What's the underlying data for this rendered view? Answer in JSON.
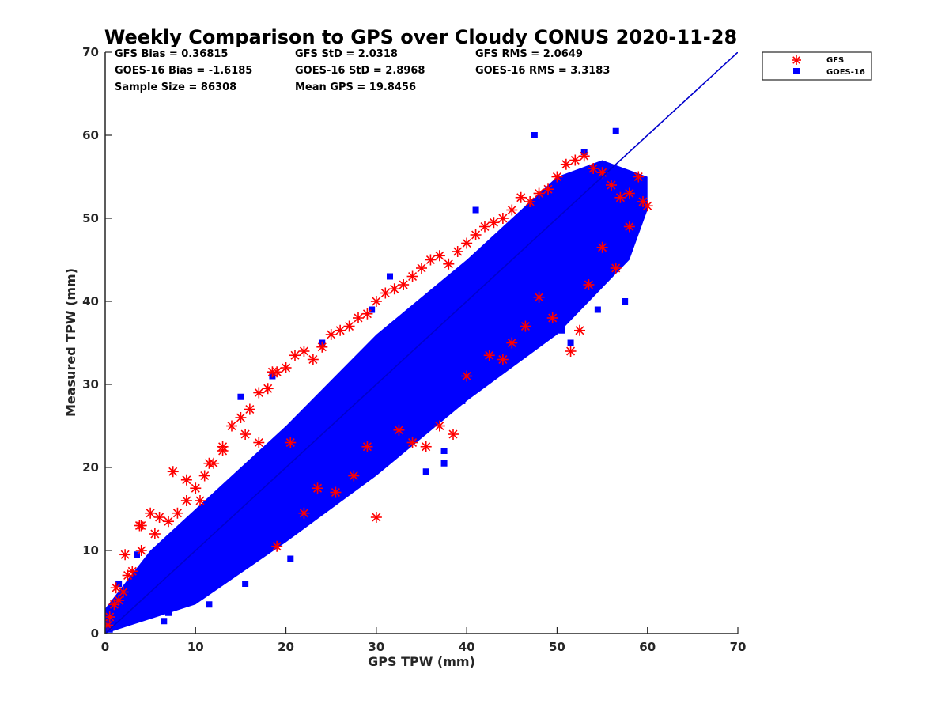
{
  "chart_data": {
    "type": "scatter",
    "title": "Weekly Comparison to GPS over Cloudy CONUS 2020-11-28",
    "xlabel": "GPS TPW (mm)",
    "ylabel": "Measured TPW (mm)",
    "xlim": [
      0,
      70
    ],
    "ylim": [
      0,
      70
    ],
    "xticks": [
      0,
      10,
      20,
      30,
      40,
      50,
      60,
      70
    ],
    "yticks": [
      0,
      10,
      20,
      30,
      40,
      50,
      60,
      70
    ],
    "grid": false,
    "legend_position": "outside top-right",
    "stats": [
      [
        "GFS Bias = 0.36815",
        "GFS StD = 2.0318",
        "GFS RMS = 2.0649"
      ],
      [
        "GOES-16 Bias = -1.6185",
        "GOES-16 StD = 2.8968",
        "GOES-16 RMS = 3.3183"
      ],
      [
        "Sample Size = 86308",
        "Mean GPS = 19.8456",
        ""
      ]
    ],
    "reference_line": {
      "x": [
        0,
        70
      ],
      "y": [
        0,
        70
      ],
      "color": "#0000cc"
    },
    "series": [
      {
        "name": "GFS",
        "marker": "asterisk",
        "color": "#ff0000",
        "x": [
          0.5,
          1.0,
          1.5,
          2.0,
          2.5,
          3.0,
          4.0,
          5.0,
          6.0,
          7.0,
          8.0,
          9.0,
          10.0,
          11.0,
          12.0,
          13.0,
          14.0,
          15.0,
          16.0,
          17.0,
          18.0,
          19.0,
          20.0,
          21.0,
          22.0,
          23.0,
          24.0,
          25.0,
          26.0,
          27.0,
          28.0,
          29.0,
          30.0,
          31.0,
          32.0,
          33.0,
          34.0,
          35.0,
          36.0,
          37.0,
          38.0,
          39.0,
          40.0,
          41.0,
          42.0,
          43.0,
          44.0,
          45.0,
          46.0,
          47.0,
          48.0,
          49.0,
          50.0,
          51.0,
          52.0,
          53.0,
          54.0,
          55.0,
          56.0,
          57.0,
          58.0,
          59.0,
          0.3,
          1.2,
          2.2,
          3.8,
          4.0,
          5.5,
          7.5,
          9.0,
          10.5,
          11.5,
          13.0,
          15.5,
          17.0,
          18.5,
          19.0,
          20.5,
          22.0,
          23.5,
          25.5,
          27.5,
          29.0,
          30.0,
          32.5,
          34.0,
          35.5,
          37.0,
          38.5,
          40.0,
          42.5,
          44.0,
          45.0,
          46.5,
          48.0,
          49.5,
          51.5,
          52.5,
          53.5,
          55.0,
          56.5,
          58.0,
          59.5,
          60.0
        ],
        "y": [
          2.0,
          3.5,
          4.0,
          5.0,
          7.0,
          7.5,
          13.0,
          14.5,
          14.0,
          13.5,
          14.5,
          16.0,
          17.5,
          19.0,
          20.5,
          22.5,
          25.0,
          26.0,
          27.0,
          29.0,
          29.5,
          31.5,
          32.0,
          33.5,
          34.0,
          33.0,
          34.5,
          36.0,
          36.5,
          37.0,
          38.0,
          38.5,
          40.0,
          41.0,
          41.5,
          42.0,
          43.0,
          44.0,
          45.0,
          45.5,
          44.5,
          46.0,
          47.0,
          48.0,
          49.0,
          49.5,
          50.0,
          51.0,
          52.5,
          52.0,
          53.0,
          53.5,
          55.0,
          56.5,
          57.0,
          57.5,
          56.0,
          55.5,
          54.0,
          52.5,
          53.0,
          55.0,
          1.0,
          5.5,
          9.5,
          13.0,
          10.0,
          12.0,
          19.5,
          18.5,
          16.0,
          20.5,
          22.0,
          24.0,
          23.0,
          31.5,
          10.5,
          23.0,
          14.5,
          17.5,
          17.0,
          19.0,
          22.5,
          14.0,
          24.5,
          23.0,
          22.5,
          25.0,
          24.0,
          31.0,
          33.5,
          33.0,
          35.0,
          37.0,
          40.5,
          38.0,
          34.0,
          36.5,
          42.0,
          46.5,
          44.0,
          49.0,
          52.0,
          51.5
        ]
      },
      {
        "name": "GOES-16",
        "marker": "square",
        "color": "#0000ff",
        "x": [
          0.5,
          1.0,
          2.0,
          3.0,
          4.0,
          5.0,
          6.0,
          7.0,
          8.0,
          9.0,
          10.0,
          11.0,
          12.0,
          13.0,
          14.0,
          15.0,
          16.0,
          17.0,
          18.0,
          19.0,
          20.0,
          21.0,
          22.0,
          23.0,
          24.0,
          25.0,
          26.0,
          27.0,
          28.0,
          29.0,
          30.0,
          31.0,
          32.0,
          33.0,
          34.0,
          35.0,
          36.0,
          37.0,
          38.0,
          39.0,
          40.0,
          41.0,
          42.0,
          43.0,
          44.0,
          45.0,
          46.0,
          47.0,
          48.0,
          49.0,
          50.0,
          51.0,
          52.0,
          53.0,
          54.0,
          55.0,
          56.0,
          57.0,
          58.0,
          59.0,
          1.5,
          3.5,
          6.5,
          7.0,
          11.5,
          12.0,
          15.0,
          15.5,
          18.5,
          19.5,
          20.5,
          22.5,
          24.0,
          26.0,
          29.5,
          31.5,
          33.0,
          36.5,
          37.5,
          39.5,
          41.0,
          43.5,
          47.5,
          49.0,
          50.5,
          51.5,
          53.0,
          54.5,
          55.5,
          56.5,
          57.5,
          49.0,
          37.5,
          35.5,
          17.5,
          18.5
        ],
        "y": [
          0.5,
          1.0,
          1.5,
          2.0,
          3.0,
          3.5,
          4.5,
          5.0,
          6.0,
          7.0,
          8.0,
          9.0,
          10.0,
          11.0,
          12.0,
          13.5,
          14.5,
          15.5,
          17.0,
          18.0,
          19.0,
          20.0,
          21.5,
          22.5,
          23.5,
          25.0,
          26.0,
          27.0,
          28.5,
          29.5,
          30.5,
          31.5,
          33.0,
          34.0,
          35.0,
          36.0,
          37.5,
          38.5,
          39.5,
          40.5,
          41.5,
          42.5,
          43.5,
          44.5,
          45.5,
          46.5,
          47.5,
          48.5,
          49.5,
          50.5,
          51.0,
          52.0,
          53.0,
          54.0,
          54.5,
          55.0,
          55.5,
          54.5,
          53.5,
          53.0,
          6.0,
          9.5,
          1.5,
          2.5,
          3.5,
          13.0,
          28.5,
          6.0,
          31.0,
          12.0,
          9.0,
          16.0,
          35.0,
          27.0,
          39.0,
          43.0,
          23.0,
          26.0,
          22.0,
          28.0,
          51.0,
          40.0,
          60.0,
          39.5,
          36.5,
          35.0,
          58.0,
          39.0,
          44.0,
          60.5,
          40.0,
          45.0,
          20.5,
          19.5,
          11.5,
          10.5
        ]
      }
    ]
  }
}
